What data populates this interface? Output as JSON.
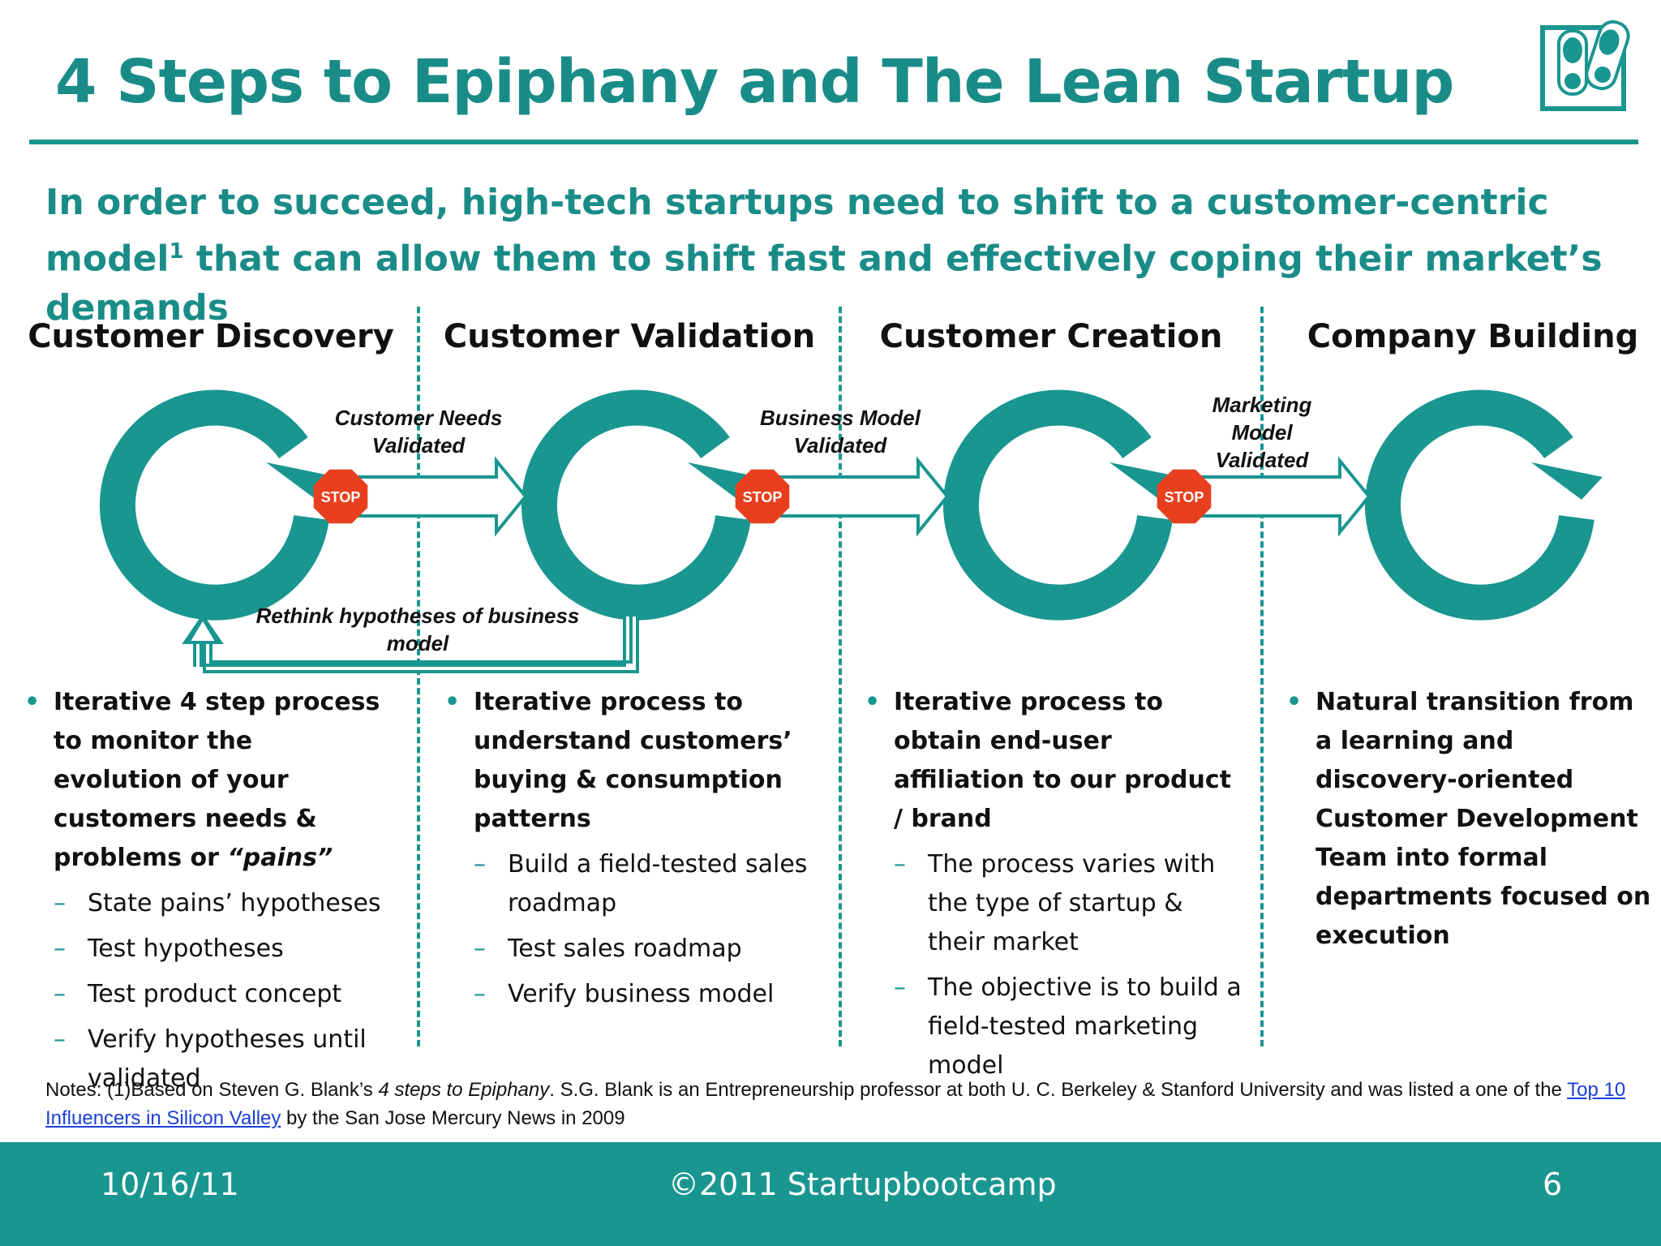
{
  "slide": {
    "title": "4 Steps to Epiphany and The Lean Startup",
    "logo_icon": "footprints-icon",
    "subtitle_main": "In order to succeed, high-tech startups need to shift to a customer-centric model",
    "subtitle_sup": "1",
    "subtitle_rest": " that can allow them to shift fast and effectively coping their market’s demands"
  },
  "stages": [
    {
      "heading": "Customer Discovery"
    },
    {
      "heading": "Customer Validation"
    },
    {
      "heading": "Customer Creation"
    },
    {
      "heading": "Company Building"
    }
  ],
  "transitions": [
    {
      "label_line1": "Customer Needs",
      "label_line2": "Validated",
      "label_line3": ""
    },
    {
      "label_line1": "Business Model",
      "label_line2": "Validated",
      "label_line3": ""
    },
    {
      "label_line1": "Marketing",
      "label_line2": "Model",
      "label_line3": "Validated"
    }
  ],
  "stop_sign_text": "STOP",
  "stop_sign_color": "#e8401f",
  "cycle_color": "#1a9690",
  "feedback_label": "Rethink hypotheses of business model",
  "columns": [
    {
      "main": "Iterative 4 step process to monitor the evolution of your customers needs & problems or ",
      "main_emph": "“pains”",
      "subs": [
        "State pains’ hypotheses",
        "Test hypotheses",
        "Test product concept",
        "Verify hypotheses until validated"
      ]
    },
    {
      "main": "Iterative process to understand customers’ buying & consumption patterns",
      "main_emph": "",
      "subs": [
        "Build a field-tested sales roadmap",
        "Test sales roadmap",
        "Verify business model"
      ]
    },
    {
      "main": "Iterative process to obtain end-user affiliation to our product / brand",
      "main_emph": "",
      "subs": [
        "The process varies with the type of startup & their market",
        "The objective is to build a field-tested marketing model"
      ]
    },
    {
      "main": "Natural transition from a learning and discovery-oriented Customer Development Team into formal departments focused on execution",
      "main_emph": "",
      "subs": []
    }
  ],
  "notes": {
    "prefix": "Notes: (1)Based on Steven G. Blank’s ",
    "book": "4 steps to Epiphany",
    "middle": ". S.G. Blank is an Entrepreneurship professor at both U. C. Berkeley & Stanford University and was listed a one of the ",
    "link": "Top 10 Influencers in Silicon Valley",
    "suffix": " by the San Jose Mercury News in 2009"
  },
  "footer": {
    "date": "10/16/11",
    "copyright": "©2011 Startupbootcamp",
    "page": "6"
  }
}
